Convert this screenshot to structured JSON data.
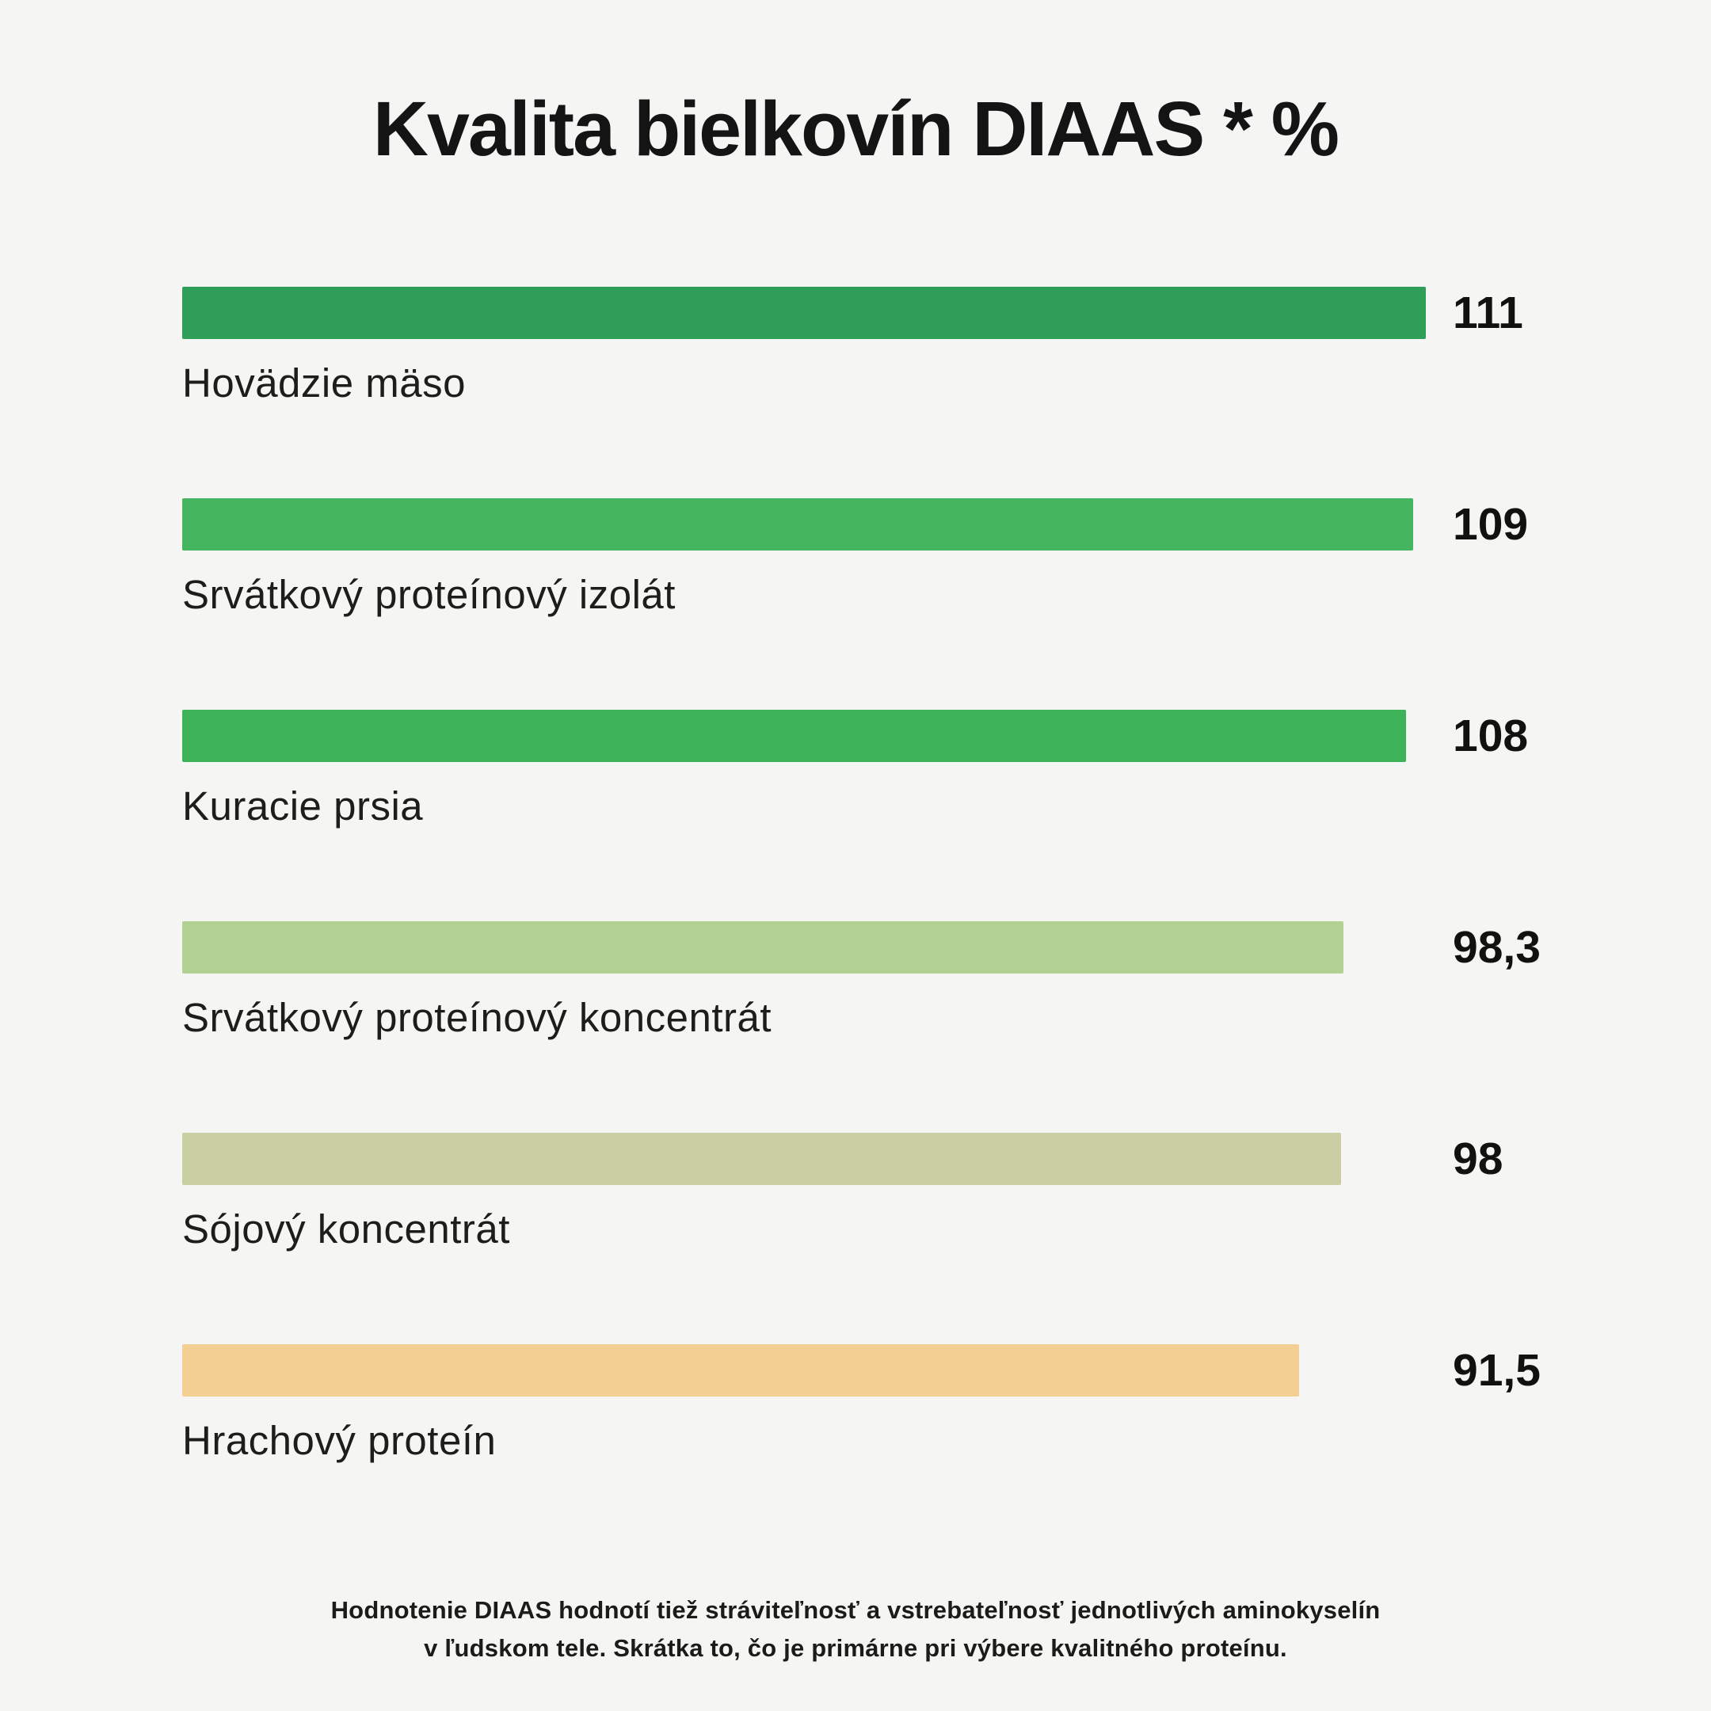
{
  "title": "Kvalita bielkovín DIAAS * %",
  "footer": {
    "line1": "Hodnotenie DIAAS hodnotí tiež stráviteľnosť a vstrebateľnosť jednotlivých aminokyselín",
    "line2": "v ľudskom tele. Skrátka to, čo je primárne pri výbere kvalitného proteínu."
  },
  "chart_data": {
    "type": "bar",
    "orientation": "horizontal",
    "title": "Kvalita bielkovín DIAAS * %",
    "xlabel": "",
    "ylabel": "",
    "grid": false,
    "legend": "none",
    "background_color": "#f5f5f3",
    "categories": [
      "Hovädzie mäso",
      "Srvátkový proteínový izolát",
      "Kuracie prsia",
      "Srvátkový proteínový koncentrát",
      "Sójový koncentrát",
      "Hrachový proteín"
    ],
    "values": [
      111,
      109,
      108,
      98.3,
      98,
      91.5
    ],
    "value_labels": [
      "111",
      "109",
      "108",
      "98,3",
      "98",
      "91,5"
    ],
    "bar_colors": [
      "#2f9e58",
      "#45b65f",
      "#3eb258",
      "#b4d194",
      "#c9cfa3",
      "#f3cf93"
    ],
    "bar_scale": {
      "min": -80,
      "max": 111
    },
    "footnote": "Hodnotenie DIAAS hodnotí tiež stráviteľnosť a vstrebateľnosť jednotlivých aminokyselín v ľudskom tele. Skrátka to, čo je primárne pri výbere kvalitného proteínu."
  }
}
